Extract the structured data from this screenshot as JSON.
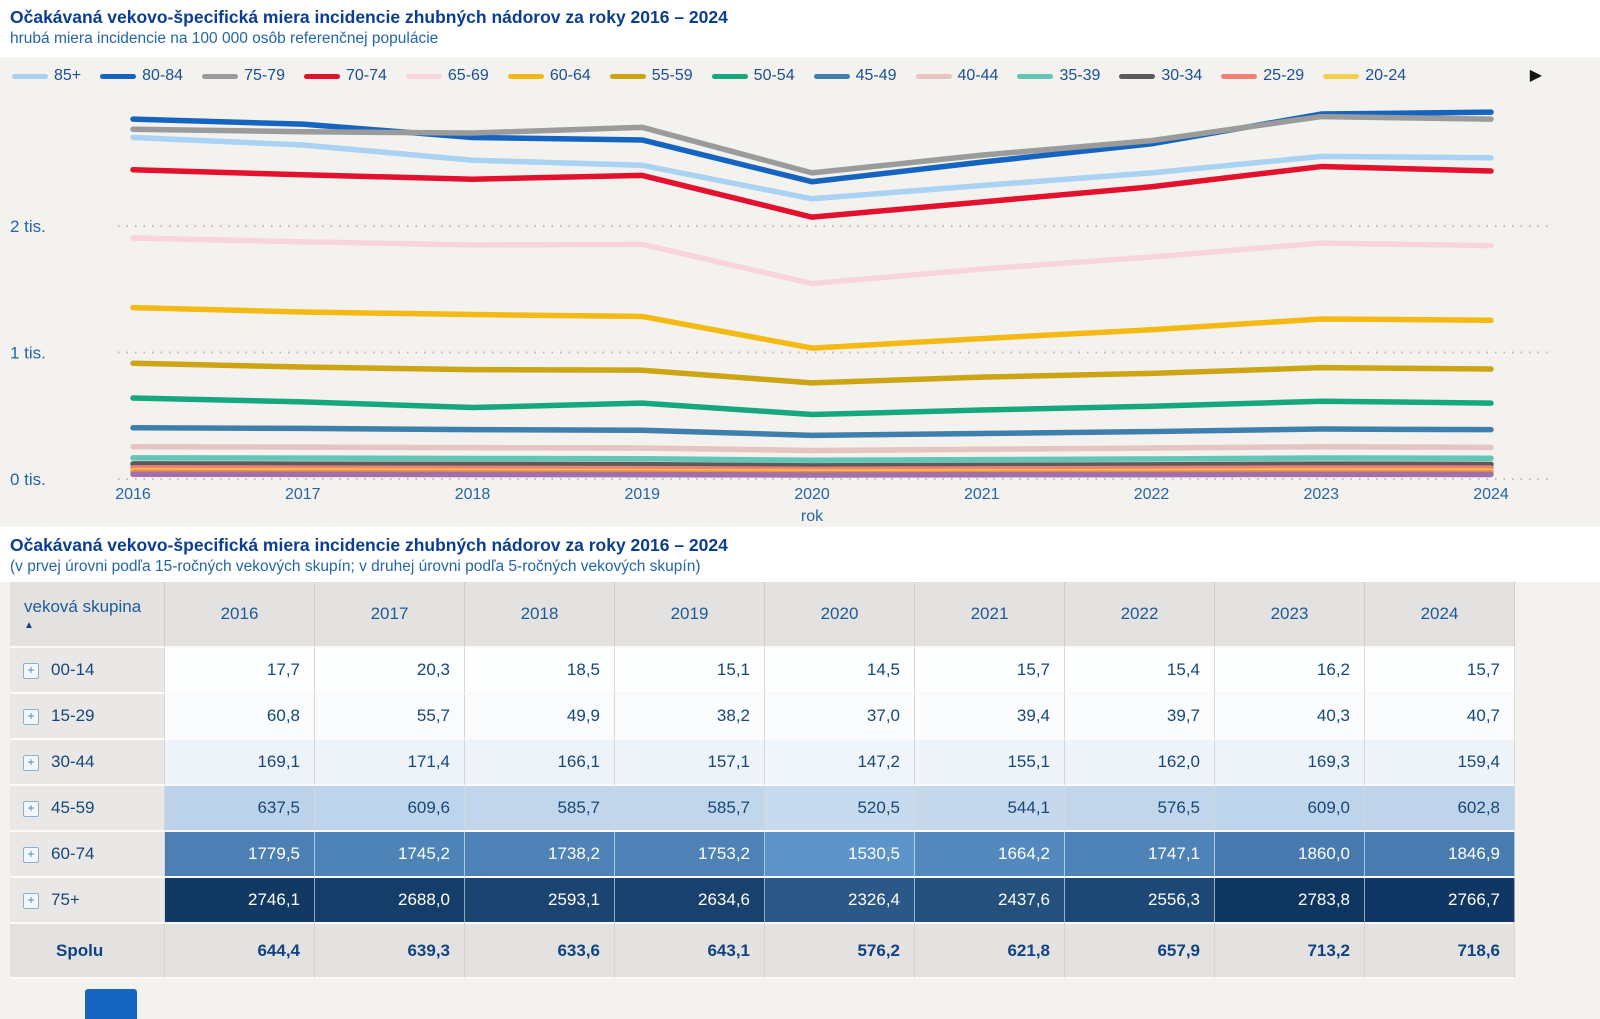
{
  "chart": {
    "title": "Očakávaná vekovo-špecifická miera incidencie zhubných nádorov za roky 2016 – 2024",
    "subtitle": "hrubá miera incidencie na 100 000 osôb referenčnej populácie",
    "xlabel": "rok",
    "legend_more_arrow": "▶"
  },
  "chart_data": {
    "type": "line",
    "x": [
      "2016",
      "2017",
      "2018",
      "2019",
      "2020",
      "2021",
      "2022",
      "2023",
      "2024"
    ],
    "xlabel": "rok",
    "ylim": [
      0,
      3000
    ],
    "ytick_values": [
      0,
      1000,
      2000
    ],
    "ytick_labels": [
      "0 tis.",
      "1 tis.",
      "2 tis."
    ],
    "grid": "horizontal-dotted",
    "legend_position": "top",
    "series": [
      {
        "name": "85+",
        "color": "#a9d2f3",
        "values": [
          2700,
          2640,
          2520,
          2480,
          2215,
          2320,
          2420,
          2550,
          2540
        ]
      },
      {
        "name": "80-84",
        "color": "#1565c0",
        "values": [
          2845,
          2805,
          2700,
          2680,
          2350,
          2505,
          2650,
          2885,
          2900
        ]
      },
      {
        "name": "75-79",
        "color": "#9b9b9b",
        "values": [
          2765,
          2745,
          2735,
          2780,
          2420,
          2560,
          2675,
          2865,
          2845
        ]
      },
      {
        "name": "70-74",
        "color": "#e4112e",
        "values": [
          2445,
          2405,
          2370,
          2400,
          2070,
          2190,
          2310,
          2470,
          2435
        ]
      },
      {
        "name": "65-69",
        "color": "#f9d3de",
        "values": [
          1905,
          1875,
          1850,
          1855,
          1545,
          1660,
          1755,
          1865,
          1845
        ]
      },
      {
        "name": "60-64",
        "color": "#f5b913",
        "values": [
          1355,
          1320,
          1300,
          1285,
          1035,
          1110,
          1180,
          1265,
          1255
        ]
      },
      {
        "name": "55-59",
        "color": "#cda414",
        "values": [
          915,
          885,
          865,
          860,
          760,
          805,
          835,
          880,
          870
        ]
      },
      {
        "name": "50-54",
        "color": "#17a77d",
        "values": [
          640,
          610,
          565,
          600,
          510,
          545,
          575,
          615,
          600
        ]
      },
      {
        "name": "45-49",
        "color": "#3f7fae",
        "values": [
          405,
          400,
          390,
          385,
          345,
          360,
          375,
          395,
          390
        ]
      },
      {
        "name": "40-44",
        "color": "#e6c4bf",
        "values": [
          255,
          252,
          248,
          245,
          225,
          235,
          245,
          255,
          250
        ]
      },
      {
        "name": "35-39",
        "color": "#63c5b6",
        "values": [
          167,
          165,
          162,
          160,
          148,
          153,
          158,
          166,
          164
        ]
      },
      {
        "name": "30-34",
        "color": "#5b5b5b",
        "values": [
          120,
          118,
          116,
          114,
          104,
          108,
          112,
          118,
          116
        ]
      },
      {
        "name": "25-29",
        "color": "#f28077",
        "values": [
          88,
          86,
          84,
          82,
          76,
          80,
          83,
          87,
          86
        ]
      },
      {
        "name": "20-24",
        "color": "#f3cf4f",
        "values": [
          64,
          62,
          60,
          58,
          54,
          56,
          58,
          62,
          61
        ]
      },
      {
        "name": "",
        "color": "#ef9143",
        "values": [
          54,
          52,
          50,
          48,
          44,
          46,
          48,
          52,
          51
        ]
      },
      {
        "name": "",
        "color": "#a26fab",
        "values": [
          38,
          37,
          36,
          35,
          32,
          34,
          35,
          37,
          36
        ]
      }
    ]
  },
  "table": {
    "title": "Očakávaná vekovo-špecifická miera incidencie zhubných nádorov za roky 2016 – 2024",
    "subtitle": "(v prvej úrovni podľa 15-ročných vekových skupín; v druhej úrovni podľa 5-ročných vekových skupín)",
    "header_label": "veková skupina",
    "sort_indicator": "▲",
    "expand_icon": "+",
    "years": [
      "2016",
      "2017",
      "2018",
      "2019",
      "2020",
      "2021",
      "2022",
      "2023",
      "2024"
    ],
    "rows": [
      {
        "group": "00-14",
        "values": [
          "17,7",
          "20,3",
          "18,5",
          "15,1",
          "14,5",
          "15,7",
          "15,4",
          "16,2",
          "15,7"
        ]
      },
      {
        "group": "15-29",
        "values": [
          "60,8",
          "55,7",
          "49,9",
          "38,2",
          "37,0",
          "39,4",
          "39,7",
          "40,3",
          "40,7"
        ]
      },
      {
        "group": "30-44",
        "values": [
          "169,1",
          "171,4",
          "166,1",
          "157,1",
          "147,2",
          "155,1",
          "162,0",
          "169,3",
          "159,4"
        ]
      },
      {
        "group": "45-59",
        "values": [
          "637,5",
          "609,6",
          "585,7",
          "585,7",
          "520,5",
          "544,1",
          "576,5",
          "609,0",
          "602,8"
        ]
      },
      {
        "group": "60-74",
        "values": [
          "1779,5",
          "1745,2",
          "1738,2",
          "1753,2",
          "1530,5",
          "1664,2",
          "1747,1",
          "1860,0",
          "1846,9"
        ]
      },
      {
        "group": "75+",
        "values": [
          "2746,1",
          "2688,0",
          "2593,1",
          "2634,6",
          "2326,4",
          "2437,6",
          "2556,3",
          "2783,8",
          "2766,7"
        ]
      }
    ],
    "total_row": {
      "group": "Spolu",
      "values": [
        "644,4",
        "639,3",
        "633,6",
        "643,1",
        "576,2",
        "621,8",
        "657,9",
        "713,2",
        "718,6"
      ]
    }
  },
  "colors": {
    "page_background": "#f3f2ef",
    "title_text": "#0b3e92",
    "subtitle_text": "#2565a8",
    "axis_text": "#2565a8",
    "legend_text": "#1b4f93",
    "heatmap_mid": "#5b92c9",
    "heatmap_max": "#0e3560",
    "table_header_bg": "#e3e2e0",
    "group_column_bg": "#e9e8e6"
  }
}
